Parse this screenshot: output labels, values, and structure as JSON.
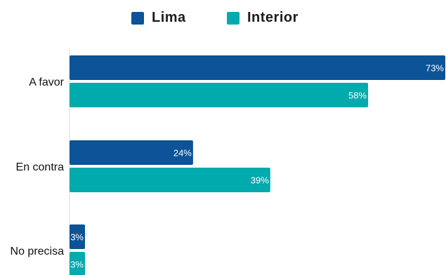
{
  "chart_data": {
    "type": "bar",
    "orientation": "horizontal",
    "categories": [
      "A favor",
      "En contra",
      "No precisa"
    ],
    "series": [
      {
        "name": "Lima",
        "values": [
          73,
          24,
          3
        ],
        "color": "#0c5397"
      },
      {
        "name": "Interior",
        "values": [
          58,
          39,
          3
        ],
        "color": "#00aaad"
      }
    ],
    "value_suffix": "%",
    "xlim": [
      0,
      73
    ],
    "grid": false,
    "legend_position": "top-center",
    "title": "",
    "xlabel": "",
    "ylabel": ""
  }
}
